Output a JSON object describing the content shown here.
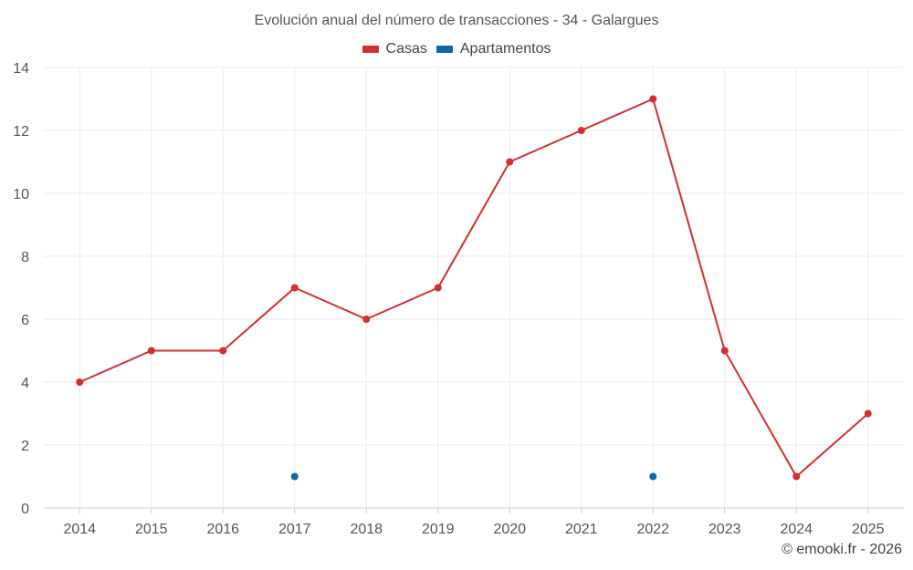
{
  "chart_data": {
    "type": "line",
    "title": "Evolución anual del número de transacciones - 34 - Galargues",
    "categories": [
      "2014",
      "2015",
      "2016",
      "2017",
      "2018",
      "2019",
      "2020",
      "2021",
      "2022",
      "2023",
      "2024",
      "2025"
    ],
    "series": [
      {
        "name": "Casas",
        "color": "#d32f2f",
        "values": [
          4,
          5,
          5,
          7,
          6,
          7,
          11,
          12,
          13,
          5,
          1,
          3
        ]
      },
      {
        "name": "Apartamentos",
        "color": "#0868a8",
        "values": [
          null,
          null,
          null,
          1,
          null,
          null,
          null,
          null,
          1,
          null,
          null,
          null
        ]
      }
    ],
    "ylim": [
      0,
      14
    ],
    "yticks": [
      0,
      2,
      4,
      6,
      8,
      10,
      12,
      14
    ],
    "grid": true,
    "legend": "top-center"
  },
  "footer": {
    "credit": "© emooki.fr - 2026"
  }
}
